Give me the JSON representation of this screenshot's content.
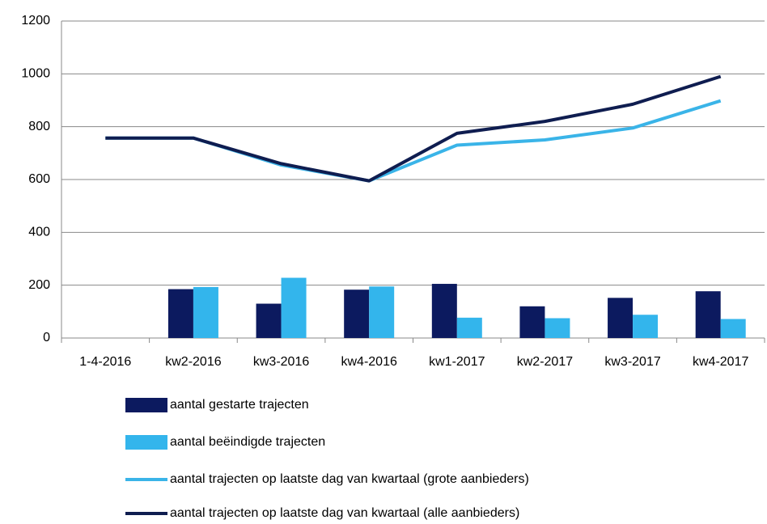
{
  "chart_data": {
    "type": "combo",
    "categories": [
      "1-4-2016",
      "kw2-2016",
      "kw3-2016",
      "kw4-2016",
      "kw1-2017",
      "kw2-2017",
      "kw3-2017",
      "kw4-2017"
    ],
    "series": [
      {
        "name": "aantal gestarte trajecten",
        "type": "bar",
        "color": "#0c1a5f",
        "values": [
          null,
          185,
          130,
          183,
          205,
          120,
          152,
          177
        ]
      },
      {
        "name": "aantal beëindigde trajecten",
        "type": "bar",
        "color": "#33b5ec",
        "values": [
          null,
          193,
          228,
          195,
          77,
          75,
          88,
          72
        ]
      },
      {
        "name": "aantal trajecten op laatste dag van kwartaal (grote aanbieders)",
        "type": "line",
        "color": "#3ab4e8",
        "values": [
          757,
          757,
          655,
          595,
          730,
          750,
          795,
          898
        ]
      },
      {
        "name": "aantal trajecten op laatste dag van kwartaal (alle aanbieders)",
        "type": "line",
        "color": "#0f1d50",
        "values": [
          757,
          757,
          660,
          595,
          775,
          820,
          885,
          990
        ]
      }
    ],
    "ylim": [
      0,
      1200
    ],
    "yticks": [
      0,
      200,
      400,
      600,
      800,
      1000,
      1200
    ],
    "grid": true,
    "legend": "bottom"
  }
}
